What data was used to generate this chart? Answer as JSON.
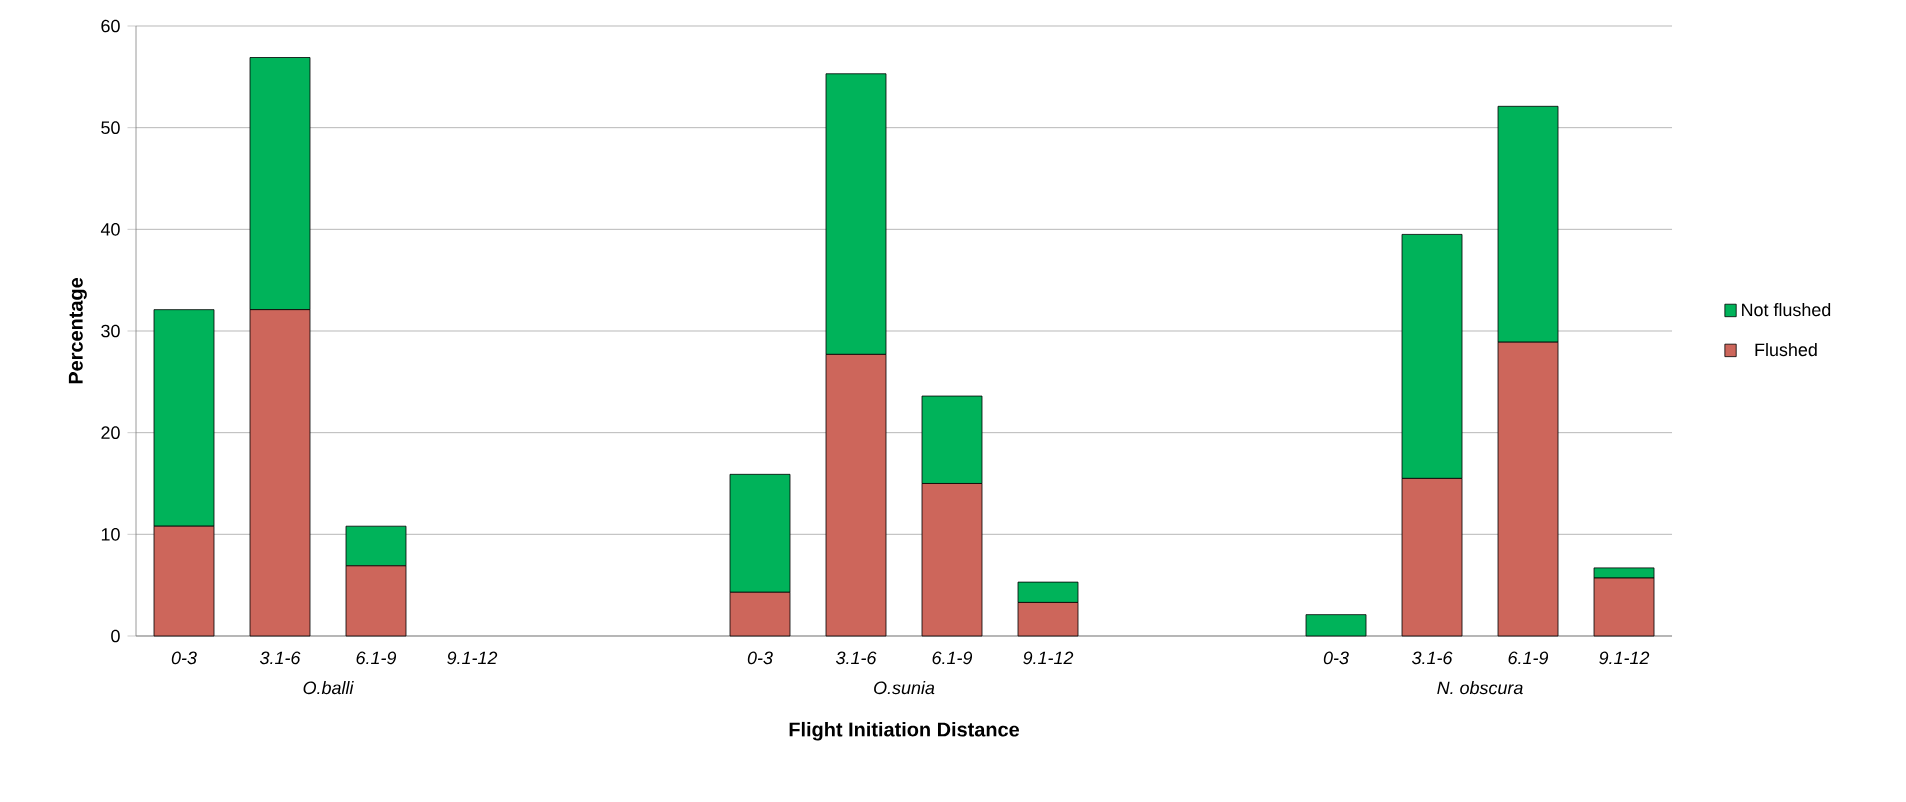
{
  "chart_data": {
    "type": "bar",
    "stacked": true,
    "xlabel": "Flight Initiation Distance",
    "ylabel": "Percentage",
    "categories": [
      "0-3",
      "3.1-6",
      "6.1-9",
      "9.1-12",
      null,
      null,
      "0-3",
      "3.1-6",
      "6.1-9",
      "9.1-12",
      null,
      null,
      "0-3",
      "3.1-6",
      "6.1-9",
      "9.1-12"
    ],
    "series": [
      {
        "name": "Flushed",
        "color": "#cd665b",
        "values": [
          10.8,
          32.1,
          6.9,
          0,
          null,
          null,
          4.3,
          27.7,
          15.0,
          3.3,
          null,
          null,
          0,
          15.5,
          28.9,
          5.7
        ]
      },
      {
        "name": "Not flushed",
        "color": "#00b35a",
        "values": [
          21.3,
          24.8,
          3.9,
          0,
          null,
          null,
          11.6,
          27.6,
          8.6,
          2.0,
          null,
          null,
          2.1,
          24.0,
          23.2,
          1.0
        ]
      }
    ],
    "annotations": [
      "O.balli",
      "O.sunia",
      "N. obscura"
    ],
    "ylim": [
      0,
      60
    ],
    "yticks": [
      0,
      10,
      20,
      30,
      40,
      50,
      60
    ],
    "grid": "y",
    "legend": "right"
  }
}
